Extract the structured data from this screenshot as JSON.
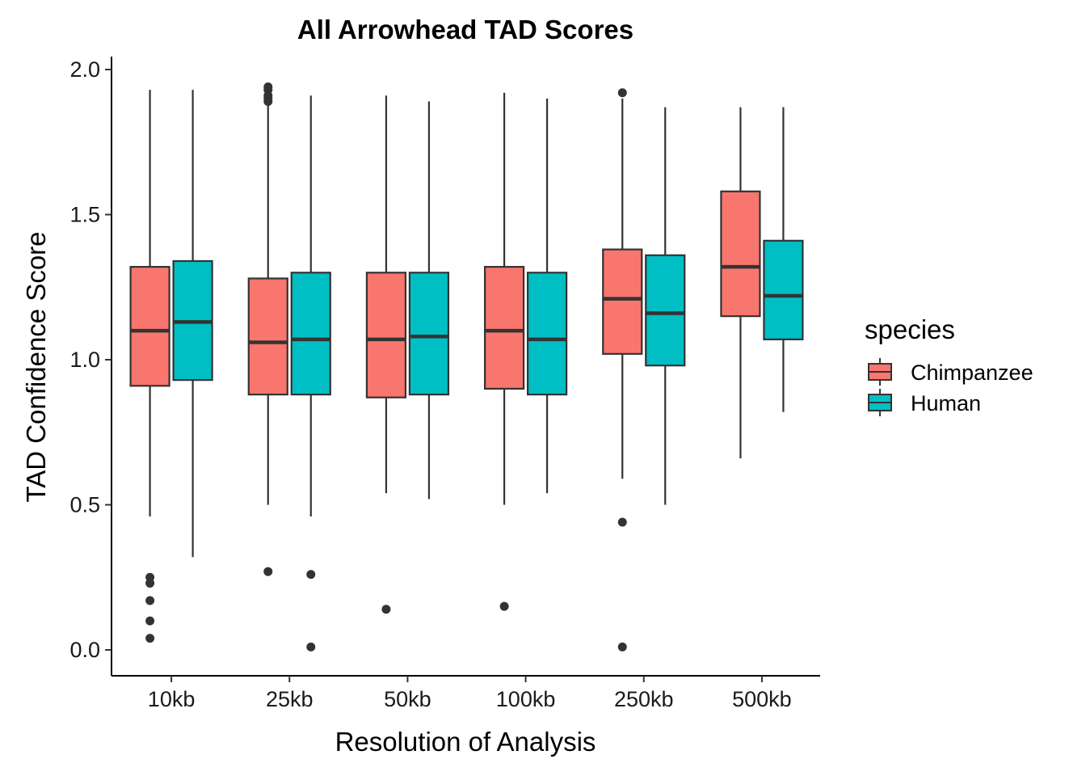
{
  "chart_data": {
    "type": "boxplot",
    "title": "All Arrowhead TAD Scores",
    "xlabel": "Resolution of Analysis",
    "ylabel": "TAD Confidence Score",
    "categories": [
      "10kb",
      "25kb",
      "50kb",
      "100kb",
      "250kb",
      "500kb"
    ],
    "ylim": [
      -0.085,
      2.04
    ],
    "yticks": [
      0.0,
      0.5,
      1.0,
      1.5,
      2.0
    ],
    "ytick_labels": [
      "0.0",
      "0.5",
      "1.0",
      "1.5",
      "2.0"
    ],
    "grid": false,
    "legend": {
      "title": "species",
      "position": "right"
    },
    "series": [
      {
        "name": "Chimpanzee",
        "color": "#F8766D",
        "boxes": [
          {
            "whisker_low": 0.46,
            "q1": 0.91,
            "median": 1.1,
            "q3": 1.32,
            "whisker_high": 1.93,
            "outliers": [
              0.25,
              0.23,
              0.17,
              0.1,
              0.04
            ]
          },
          {
            "whisker_low": 0.5,
            "q1": 0.88,
            "median": 1.06,
            "q3": 1.28,
            "whisker_high": 1.88,
            "outliers": [
              1.94,
              1.93,
              1.91,
              1.9,
              1.89,
              0.27
            ]
          },
          {
            "whisker_low": 0.54,
            "q1": 0.87,
            "median": 1.07,
            "q3": 1.3,
            "whisker_high": 1.91,
            "outliers": [
              0.14
            ]
          },
          {
            "whisker_low": 0.5,
            "q1": 0.9,
            "median": 1.1,
            "q3": 1.32,
            "whisker_high": 1.92,
            "outliers": [
              0.15
            ]
          },
          {
            "whisker_low": 0.59,
            "q1": 1.02,
            "median": 1.21,
            "q3": 1.38,
            "whisker_high": 1.9,
            "outliers": [
              1.92,
              0.44,
              0.01
            ]
          },
          {
            "whisker_low": 0.66,
            "q1": 1.15,
            "median": 1.32,
            "q3": 1.58,
            "whisker_high": 1.87,
            "outliers": []
          }
        ]
      },
      {
        "name": "Human",
        "color": "#00BFC4",
        "boxes": [
          {
            "whisker_low": 0.32,
            "q1": 0.93,
            "median": 1.13,
            "q3": 1.34,
            "whisker_high": 1.93,
            "outliers": []
          },
          {
            "whisker_low": 0.46,
            "q1": 0.88,
            "median": 1.07,
            "q3": 1.3,
            "whisker_high": 1.91,
            "outliers": [
              0.26,
              0.01
            ]
          },
          {
            "whisker_low": 0.52,
            "q1": 0.88,
            "median": 1.08,
            "q3": 1.3,
            "whisker_high": 1.89,
            "outliers": []
          },
          {
            "whisker_low": 0.54,
            "q1": 0.88,
            "median": 1.07,
            "q3": 1.3,
            "whisker_high": 1.9,
            "outliers": []
          },
          {
            "whisker_low": 0.5,
            "q1": 0.98,
            "median": 1.16,
            "q3": 1.36,
            "whisker_high": 1.87,
            "outliers": []
          },
          {
            "whisker_low": 0.82,
            "q1": 1.07,
            "median": 1.22,
            "q3": 1.41,
            "whisker_high": 1.87,
            "outliers": []
          }
        ]
      }
    ]
  }
}
